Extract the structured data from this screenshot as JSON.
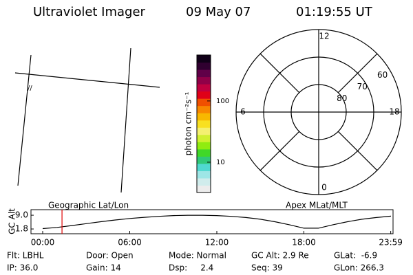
{
  "header": {
    "instrument": "Ultraviolet Imager",
    "date": "09 May 07",
    "time": "01:19:55 UT"
  },
  "map": {
    "label": "//"
  },
  "colorbar": {
    "label": "photon cm⁻²s⁻¹",
    "log": true,
    "lim": [
      3.2,
      563
    ],
    "ticks": [
      10,
      100
    ],
    "colors": [
      "#ececec",
      "#d0ecec",
      "#9ee6e6",
      "#50d8d0",
      "#30c878",
      "#40d828",
      "#90ec10",
      "#d0f030",
      "#f4f070",
      "#f8e020",
      "#f8b800",
      "#f88800",
      "#f05000",
      "#e00018",
      "#c00040",
      "#900048",
      "#600048",
      "#300030",
      "#100018"
    ]
  },
  "polar": {
    "rings": [
      80,
      70,
      60
    ],
    "pole": 90,
    "mlt_labels": [
      12,
      18,
      0,
      6
    ]
  },
  "altitude_plot": {
    "ylabel": "GC Alt",
    "left_label": "Geographic Lat/Lon",
    "right_label": "Apex MLat/MLT",
    "ylim": [
      -0.7,
      11.9
    ],
    "yticks": [
      {
        "value": 9,
        "label": "9.0"
      },
      1.8
    ],
    "xlim": [
      0,
      24
    ],
    "xticks": [
      {
        "value": 0,
        "label": "00:00"
      },
      {
        "value": 6,
        "label": "06:00"
      },
      {
        "value": 12,
        "label": "12:00"
      },
      {
        "value": 18,
        "label": "18:00"
      },
      {
        "value": 23.983,
        "label": "23:59"
      }
    ],
    "x": [
      0,
      1,
      2,
      3,
      4,
      5,
      6,
      7,
      8,
      9,
      10,
      11,
      12,
      13,
      14,
      15,
      16,
      17,
      18,
      19,
      20,
      21,
      22,
      23,
      24
    ],
    "values": [
      2.0,
      2.6,
      3.6,
      4.6,
      5.6,
      6.5,
      7.3,
      7.9,
      8.4,
      8.8,
      9.0,
      9.0,
      8.8,
      8.4,
      7.8,
      6.9,
      5.6,
      4.0,
      2.2,
      2.2,
      4.0,
      5.6,
      6.9,
      7.8,
      8.5
    ],
    "color": "#000000",
    "marker_time": 1.332,
    "marker_color": "#e00000"
  },
  "info": {
    "rows": [
      [
        "Flt: LBHL",
        "Door: Open",
        "Mode: Normal",
        "GC Alt: 2.9 Re",
        "GLat:  -6.9"
      ],
      [
        "IP: 36.0",
        "Gain: 14",
        "Dsp:     2.4",
        "Seq: 39",
        "GLon: 266.3"
      ]
    ]
  }
}
